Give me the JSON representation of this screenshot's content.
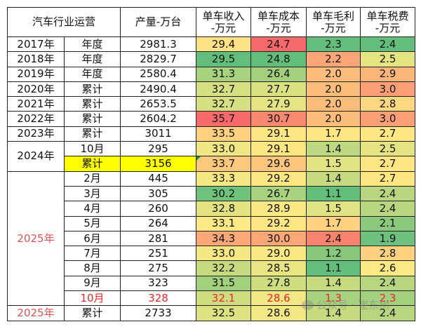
{
  "header": {
    "title": "汽车行业运营",
    "production": "产量-万台",
    "revenue": [
      "单车收入",
      "-万元"
    ],
    "cost": [
      "单车成本",
      "-万元"
    ],
    "margin": [
      "单车毛利",
      "-万元"
    ],
    "tax": [
      "单车税费",
      "-万元"
    ]
  },
  "rows": [
    {
      "year": "2017年",
      "period": "年度",
      "prod": "2981.3",
      "vals": [
        "29.4",
        "24.7",
        "2.3",
        "2.4"
      ],
      "colors": [
        "#fee283",
        "#f8696b",
        "#63be7b",
        "#63be7b"
      ]
    },
    {
      "year": "2018年",
      "period": "年度",
      "prod": "2829.7",
      "vals": [
        "29.5",
        "24.8",
        "2.2",
        "2.5"
      ],
      "colors": [
        "#63be7b",
        "#63be7b",
        "#fba677",
        "#e4e483"
      ]
    },
    {
      "year": "2019年",
      "period": "年度",
      "prod": "2580.4",
      "vals": [
        "31.3",
        "26.4",
        "2.0",
        "2.9"
      ],
      "colors": [
        "#a9d27f",
        "#a4d07e",
        "#fcbd7b",
        "#fcb67a"
      ]
    },
    {
      "year": "2020年",
      "period": "累计",
      "prod": "2490.4",
      "vals": [
        "32.7",
        "27.7",
        "2.0",
        "3.0"
      ],
      "colors": [
        "#d6e082",
        "#d9e082",
        "#fcbd7b",
        "#fba076"
      ]
    },
    {
      "year": "2021年",
      "period": "累计",
      "prod": "2653.5",
      "vals": [
        "32.7",
        "27.9",
        "2.0",
        "2.8"
      ],
      "colors": [
        "#d6e082",
        "#e4e483",
        "#fcbd7b",
        "#fdd880"
      ]
    },
    {
      "year": "2022年",
      "period": "累计",
      "prod": "2604.2",
      "vals": [
        "35.7",
        "30.7",
        "2.0",
        "3.0"
      ],
      "colors": [
        "#f8696b",
        "#f8886f",
        "#fcbd7b",
        "#fba076"
      ]
    },
    {
      "year": "2023年",
      "period": "累计",
      "prod": "3011",
      "vals": [
        "33.5",
        "29.1",
        "1.7",
        "2.7"
      ],
      "colors": [
        "#fdd17f",
        "#fee683",
        "#fee683",
        "#fee683"
      ]
    },
    {
      "year": "2024年",
      "yearSpan": 2,
      "period": "10月",
      "prod": "295",
      "vals": [
        "33.0",
        "29.1",
        "1.4",
        "2.5"
      ],
      "colors": [
        "#f0e784",
        "#fee683",
        "#bcd880",
        "#e4e483"
      ]
    },
    {
      "period": "累计",
      "prod": "3156",
      "highlight": true,
      "vals": [
        "33.7",
        "29.6",
        "1.5",
        "2.7"
      ],
      "colors": [
        "#fcc97c",
        "#fcc57c",
        "#e2e383",
        "#fee683"
      ]
    },
    {
      "year": "2025年",
      "yearSpan": 9,
      "yearRed": true,
      "period": "2月",
      "prod": "445",
      "vals": [
        "33.3",
        "29.2",
        "1.4",
        "2.7"
      ],
      "colors": [
        "#f5e884",
        "#fee683",
        "#c6db80",
        "#fee683"
      ]
    },
    {
      "period": "3月",
      "prod": "305",
      "vals": [
        "30.2",
        "26.7",
        "1.1",
        "2.4"
      ],
      "colors": [
        "#6fc27c",
        "#a9d27f",
        "#63be7b",
        "#b8d680"
      ]
    },
    {
      "period": "4月",
      "prod": "260",
      "vals": [
        "32.8",
        "28.9",
        "1.5",
        "2.4"
      ],
      "colors": [
        "#e3e383",
        "#f9e883",
        "#e0e283",
        "#b8d680"
      ]
    },
    {
      "period": "5月",
      "prod": "264",
      "vals": [
        "33.1",
        "29.2",
        "1.7",
        "2.1"
      ],
      "colors": [
        "#fbe983",
        "#fee683",
        "#fed280",
        "#8ac87d"
      ]
    },
    {
      "period": "6月",
      "prod": "281",
      "vals": [
        "34.3",
        "30.0",
        "2.4",
        "1.9"
      ],
      "colors": [
        "#fba777",
        "#fba777",
        "#f8836e",
        "#6ec17c"
      ]
    },
    {
      "period": "7月",
      "prod": "251",
      "vals": [
        "33.0",
        "29.0",
        "1.2",
        "2.8"
      ],
      "colors": [
        "#f4e884",
        "#fae983",
        "#88c87d",
        "#fdd17f"
      ]
    },
    {
      "period": "8月",
      "prod": "275",
      "vals": [
        "32.2",
        "28.5",
        "1.1",
        "2.6"
      ],
      "colors": [
        "#c6db80",
        "#eae583",
        "#63be7b",
        "#fbe983"
      ]
    },
    {
      "period": "9月",
      "prod": "323",
      "vals": [
        "31.5",
        "27.8",
        "1.4",
        "2.4"
      ],
      "colors": [
        "#a3d07e",
        "#cfdd81",
        "#c6db80",
        "#b8d680"
      ]
    },
    {
      "period": "10月",
      "prod": "328",
      "red": true,
      "vals": [
        "32.1",
        "28.6",
        "1.3",
        "2.3"
      ],
      "colors": [
        "#cfdd81",
        "#f1e784",
        "#a8d17f",
        "#a3d07e"
      ]
    },
    {
      "year": "2025年",
      "yearRed": true,
      "period": "累计",
      "prod": "2733",
      "vals": [
        "32.5",
        "28.6",
        "1.4",
        "2.4"
      ],
      "colors": [
        "#dfe283",
        "#f1e784",
        "#c6db80",
        "#b8d680"
      ]
    }
  ],
  "watermark": "公众号 · 崔东树",
  "colors": {
    "highlight": "#ffff00",
    "red_text": "#e8262a",
    "heat_low": "#63be7b",
    "heat_mid": "#ffeb84",
    "heat_high": "#f8696b"
  }
}
